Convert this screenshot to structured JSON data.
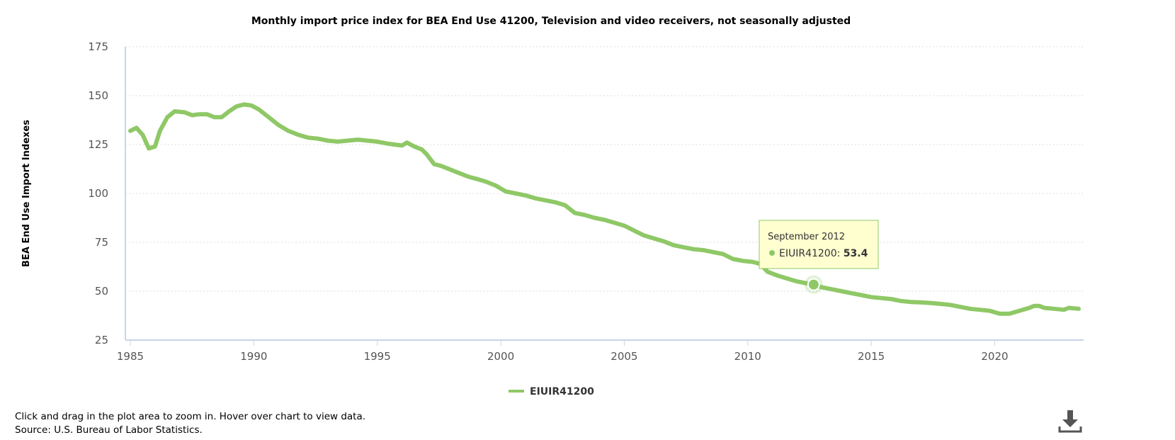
{
  "chart_data": {
    "type": "line",
    "title": "Monthly import price index for BEA End Use 41200, Television and video receivers, not seasonally adjusted",
    "xlabel": "",
    "ylabel": "BEA End Use Import Indexes",
    "xlim": [
      1984.8,
      2023.6
    ],
    "ylim": [
      25,
      175
    ],
    "y_ticks": [
      25,
      50,
      75,
      100,
      125,
      150,
      175
    ],
    "x_ticks": [
      1985,
      1990,
      1995,
      2000,
      2005,
      2010,
      2015,
      2020
    ],
    "grid": "horizontal dotted",
    "legend": "bottom-center",
    "series": [
      {
        "name": "EIUIR41200",
        "color": "#8fc866",
        "points": [
          [
            1985.0,
            132
          ],
          [
            1985.25,
            133.5
          ],
          [
            1985.5,
            130
          ],
          [
            1985.75,
            123
          ],
          [
            1986.0,
            124
          ],
          [
            1986.2,
            132
          ],
          [
            1986.5,
            139
          ],
          [
            1986.8,
            142
          ],
          [
            1987.2,
            141.5
          ],
          [
            1987.5,
            140
          ],
          [
            1987.8,
            140.5
          ],
          [
            1988.1,
            140.5
          ],
          [
            1988.4,
            139
          ],
          [
            1988.7,
            139
          ],
          [
            1989.0,
            142
          ],
          [
            1989.3,
            144.5
          ],
          [
            1989.6,
            145.5
          ],
          [
            1989.9,
            145
          ],
          [
            1990.2,
            143
          ],
          [
            1990.6,
            139
          ],
          [
            1991.0,
            135
          ],
          [
            1991.4,
            132
          ],
          [
            1991.8,
            130
          ],
          [
            1992.2,
            128.5
          ],
          [
            1992.6,
            128
          ],
          [
            1993.0,
            127
          ],
          [
            1993.4,
            126.5
          ],
          [
            1993.8,
            127
          ],
          [
            1994.2,
            127.5
          ],
          [
            1994.6,
            127
          ],
          [
            1995.0,
            126.5
          ],
          [
            1995.4,
            125.5
          ],
          [
            1995.7,
            125
          ],
          [
            1996.0,
            124.5
          ],
          [
            1996.2,
            126
          ],
          [
            1996.5,
            124
          ],
          [
            1996.8,
            122.5
          ],
          [
            1997.0,
            120
          ],
          [
            1997.3,
            115
          ],
          [
            1997.6,
            114
          ],
          [
            1998.0,
            112
          ],
          [
            1998.4,
            110
          ],
          [
            1998.7,
            108.5
          ],
          [
            1999.0,
            107.5
          ],
          [
            1999.4,
            106
          ],
          [
            1999.8,
            104
          ],
          [
            2000.2,
            101
          ],
          [
            2000.6,
            100
          ],
          [
            2001.0,
            99
          ],
          [
            2001.4,
            97.5
          ],
          [
            2001.8,
            96.5
          ],
          [
            2002.2,
            95.5
          ],
          [
            2002.6,
            94
          ],
          [
            2003.0,
            90
          ],
          [
            2003.4,
            89
          ],
          [
            2003.8,
            87.5
          ],
          [
            2004.2,
            86.5
          ],
          [
            2004.6,
            85
          ],
          [
            2005.0,
            83.5
          ],
          [
            2005.4,
            81
          ],
          [
            2005.8,
            78.5
          ],
          [
            2006.2,
            77
          ],
          [
            2006.6,
            75.5
          ],
          [
            2007.0,
            73.5
          ],
          [
            2007.4,
            72.5
          ],
          [
            2007.8,
            71.5
          ],
          [
            2008.2,
            71
          ],
          [
            2008.6,
            70
          ],
          [
            2009.0,
            69
          ],
          [
            2009.4,
            66.5
          ],
          [
            2009.8,
            65.5
          ],
          [
            2010.2,
            65
          ],
          [
            2010.5,
            64
          ],
          [
            2010.8,
            60
          ],
          [
            2011.2,
            58
          ],
          [
            2011.6,
            56.5
          ],
          [
            2012.0,
            55
          ],
          [
            2012.4,
            54
          ],
          [
            2012.67,
            53.4
          ],
          [
            2013.0,
            52
          ],
          [
            2013.4,
            51
          ],
          [
            2013.8,
            50
          ],
          [
            2014.2,
            49
          ],
          [
            2014.6,
            48
          ],
          [
            2015.0,
            47
          ],
          [
            2015.4,
            46.5
          ],
          [
            2015.8,
            46
          ],
          [
            2016.2,
            45
          ],
          [
            2016.6,
            44.5
          ],
          [
            2017.0,
            44.3
          ],
          [
            2017.4,
            44
          ],
          [
            2017.8,
            43.5
          ],
          [
            2018.2,
            43
          ],
          [
            2018.6,
            42
          ],
          [
            2019.0,
            41
          ],
          [
            2019.4,
            40.5
          ],
          [
            2019.8,
            40
          ],
          [
            2020.2,
            38.5
          ],
          [
            2020.6,
            38.5
          ],
          [
            2021.0,
            40
          ],
          [
            2021.4,
            41.5
          ],
          [
            2021.6,
            42.5
          ],
          [
            2021.8,
            42.5
          ],
          [
            2022.0,
            41.5
          ],
          [
            2022.4,
            41
          ],
          [
            2022.8,
            40.5
          ],
          [
            2023.0,
            41.5
          ],
          [
            2023.4,
            41
          ]
        ]
      }
    ],
    "tooltip": {
      "date_label": "September 2012",
      "series_name": "EIUIR41200",
      "separator": ": ",
      "value": "53.4",
      "x": 2012.67,
      "y": 53.4
    }
  },
  "footer": {
    "hint": "Click and drag in the plot area to zoom in. Hover over chart to view data.",
    "source": "Source: U.S. Bureau of Labor Statistics."
  },
  "icons": {
    "download": "download-icon"
  }
}
